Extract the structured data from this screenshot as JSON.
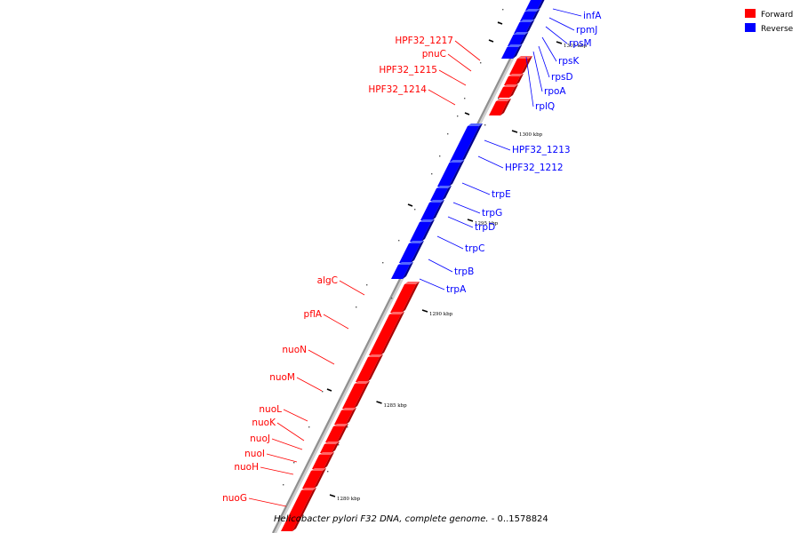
{
  "title": {
    "organism": "Helicobacter pylori F32 DNA, complete genome.",
    "range": " - 0..1578824"
  },
  "legend": [
    {
      "label": "Forward",
      "color": "#ff0000"
    },
    {
      "label": "Reverse",
      "color": "#0000ff"
    }
  ],
  "colors": {
    "forward": "#ff0000",
    "reverse": "#0000ff",
    "backbone": "#909090"
  },
  "ticks": [
    "1280 kbp",
    "1285 kbp",
    "1290 kbp",
    "1295 kbp",
    "1300 kbp",
    "1305 kbp"
  ],
  "genes": {
    "reverse": [
      "infA",
      "rpmJ",
      "rpsM",
      "rpsK",
      "rpsD",
      "rpoA",
      "rplQ",
      "HPF32_1213",
      "HPF32_1212",
      "trpE",
      "trpG",
      "trpD",
      "trpC",
      "trpB",
      "trpA"
    ],
    "forward": [
      "HPF32_1217",
      "pnuC",
      "HPF32_1215",
      "HPF32_1214",
      "algC",
      "pflA",
      "nuoN",
      "nuoM",
      "nuoL",
      "nuoK",
      "nuoJ",
      "nuoI",
      "nuoH",
      "nuoG"
    ]
  }
}
